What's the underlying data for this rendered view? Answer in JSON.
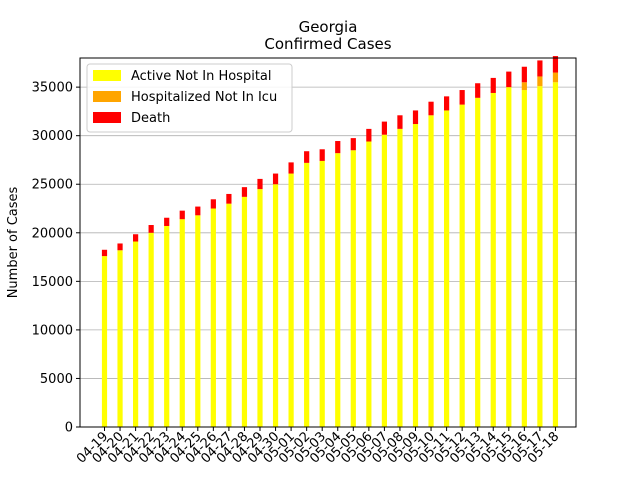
{
  "chart_data": {
    "type": "bar",
    "stacked": true,
    "title": "Georgia",
    "subtitle": "Confirmed Cases",
    "xlabel": "",
    "ylabel": "Number of Cases",
    "ylim": [
      0,
      38000
    ],
    "yticks": [
      0,
      5000,
      10000,
      15000,
      20000,
      25000,
      30000,
      35000
    ],
    "grid": "horizontal",
    "legend_position": "top-left",
    "categories": [
      "04-19",
      "04-20",
      "04-21",
      "04-22",
      "04-23",
      "04-24",
      "04-25",
      "04-26",
      "04-27",
      "04-28",
      "04-29",
      "04-30",
      "05-01",
      "05-02",
      "05-03",
      "05-04",
      "05-05",
      "05-06",
      "05-07",
      "05-08",
      "05-09",
      "05-10",
      "05-11",
      "05-12",
      "05-13",
      "05-14",
      "05-15",
      "05-16",
      "05-17",
      "05-18"
    ],
    "series": [
      {
        "name": "Active Not In Hospital",
        "color": "#ffff00",
        "values": [
          17600,
          18200,
          19100,
          20000,
          20700,
          21400,
          21800,
          22500,
          23000,
          23700,
          24500,
          25000,
          26100,
          27200,
          27400,
          28200,
          28500,
          29400,
          30100,
          30700,
          31200,
          32100,
          32600,
          33200,
          33900,
          34400,
          35000,
          34700,
          35100,
          35500
        ]
      },
      {
        "name": "Hospitalized Not In Icu",
        "color": "#ffa500",
        "values": [
          0,
          0,
          0,
          0,
          0,
          0,
          0,
          0,
          0,
          0,
          0,
          0,
          0,
          0,
          0,
          0,
          0,
          0,
          0,
          0,
          0,
          0,
          0,
          0,
          0,
          0,
          0,
          800,
          1000,
          1000
        ]
      },
      {
        "name": "Death",
        "color": "#ff0000",
        "values": [
          650,
          700,
          750,
          800,
          850,
          880,
          900,
          950,
          1000,
          1000,
          1050,
          1100,
          1150,
          1200,
          1200,
          1250,
          1250,
          1300,
          1350,
          1400,
          1400,
          1400,
          1450,
          1500,
          1500,
          1550,
          1600,
          1600,
          1650,
          1700
        ]
      }
    ]
  }
}
